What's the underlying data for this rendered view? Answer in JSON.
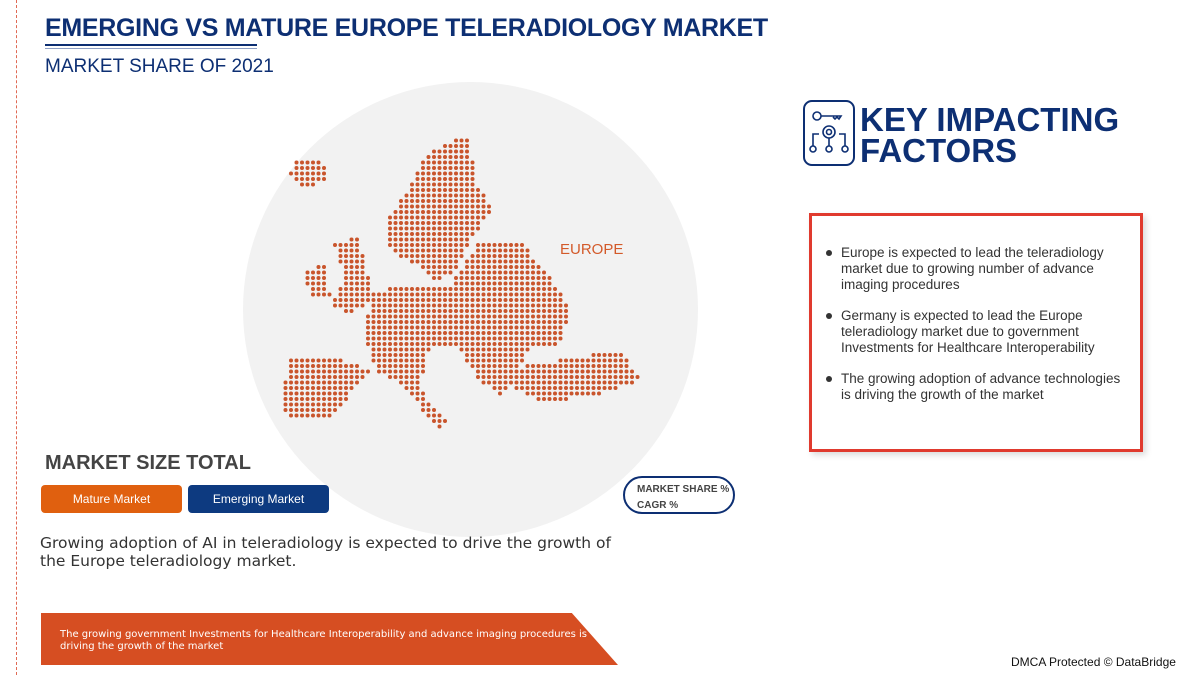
{
  "header": {
    "title": "EMERGING VS MATURE EUROPE TELERADIOLOGY MARKET",
    "subtitle": "MARKET SHARE OF 2021"
  },
  "map": {
    "region_label": "EUROPE",
    "dot_color": "#c9552c"
  },
  "key_factors": {
    "title_line1": "KEY IMPACTING",
    "title_line2": "FACTORS",
    "icon": "key-gear-network-icon",
    "items": [
      "Europe is expected to lead the teleradiology market due to growing number of advance imaging procedures",
      "Germany is expected to lead the Europe teleradiology market due to government Investments for Healthcare Interoperability",
      "The growing adoption of advance technologies is driving the growth of the market"
    ]
  },
  "market_size": {
    "title": "MARKET SIZE TOTAL",
    "mature_label": "Mature Market",
    "emerging_label": "Emerging Market",
    "mature_color": "#e0600f",
    "emerging_color": "#0d3a80"
  },
  "legend": {
    "line1": "MARKET SHARE %",
    "line2": "CAGR %"
  },
  "description": "Growing adoption of AI in teleradiology is expected to drive the growth of the Europe teleradiology market.",
  "banner": "The growing government Investments for Healthcare Interoperability and advance imaging procedures is driving the growth of the market",
  "footer": "DMCA Protected © DataBridge"
}
